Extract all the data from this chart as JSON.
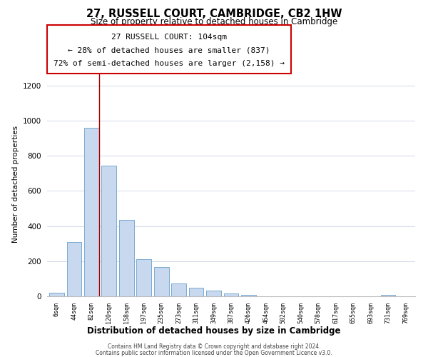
{
  "title": "27, RUSSELL COURT, CAMBRIDGE, CB2 1HW",
  "subtitle": "Size of property relative to detached houses in Cambridge",
  "xlabel": "Distribution of detached houses by size in Cambridge",
  "ylabel": "Number of detached properties",
  "bar_labels": [
    "6sqm",
    "44sqm",
    "82sqm",
    "120sqm",
    "158sqm",
    "197sqm",
    "235sqm",
    "273sqm",
    "311sqm",
    "349sqm",
    "387sqm",
    "426sqm",
    "464sqm",
    "502sqm",
    "540sqm",
    "578sqm",
    "617sqm",
    "655sqm",
    "693sqm",
    "731sqm",
    "769sqm"
  ],
  "bar_values": [
    20,
    310,
    960,
    745,
    435,
    210,
    165,
    75,
    48,
    32,
    18,
    8,
    0,
    0,
    0,
    0,
    0,
    0,
    0,
    8,
    0
  ],
  "bar_color": "#c8d8ef",
  "bar_edge_color": "#7aaad0",
  "red_line_x": 2.42,
  "ylim": [
    0,
    1280
  ],
  "yticks": [
    0,
    200,
    400,
    600,
    800,
    1000,
    1200
  ],
  "footer_line1": "Contains HM Land Registry data © Crown copyright and database right 2024.",
  "footer_line2": "Contains public sector information licensed under the Open Government Licence v3.0.",
  "background_color": "#ffffff",
  "annotation_box_edge_color": "#cc0000",
  "red_line_color": "#aa0000",
  "grid_color": "#d0d8e8",
  "annot_line1": "27 RUSSELL COURT: 104sqm",
  "annot_line2": "← 28% of detached houses are smaller (837)",
  "annot_line3": "72% of semi-detached houses are larger (2,158) →"
}
